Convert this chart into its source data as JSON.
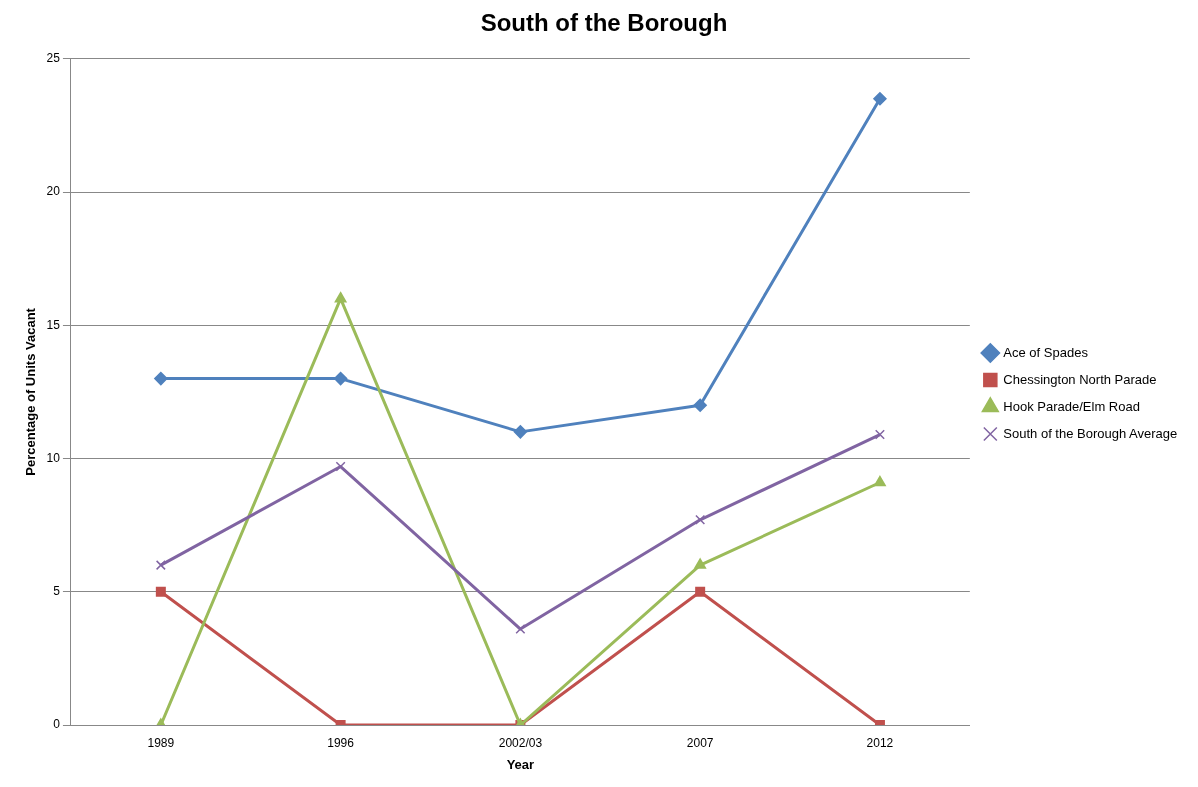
{
  "chart_data": {
    "type": "line",
    "title": "South of the Borough",
    "xlabel": "Year",
    "ylabel": "Percentage of Units Vacant",
    "categories": [
      "1989",
      "1996",
      "2002/03",
      "2007",
      "2012"
    ],
    "series": [
      {
        "name": "Ace of Spades",
        "color": "#4f81bd",
        "marker": "diamond",
        "values": [
          13,
          13,
          11,
          12,
          23.5
        ]
      },
      {
        "name": "Chessington North Parade",
        "color": "#c0504d",
        "marker": "square",
        "values": [
          5,
          0,
          0,
          5,
          0
        ]
      },
      {
        "name": "Hook Parade/Elm Road",
        "color": "#9bbb59",
        "marker": "triangle",
        "values": [
          0,
          16,
          0,
          6,
          9.1
        ]
      },
      {
        "name": "South of the Borough Average",
        "color": "#8064a2",
        "marker": "cross",
        "values": [
          6,
          9.7,
          3.6,
          7.7,
          10.9
        ]
      }
    ],
    "ylim": [
      0,
      25
    ],
    "yticks": [
      0,
      5,
      10,
      15,
      20,
      25
    ],
    "grid": "y",
    "legend": "right",
    "line_style": "solid"
  }
}
